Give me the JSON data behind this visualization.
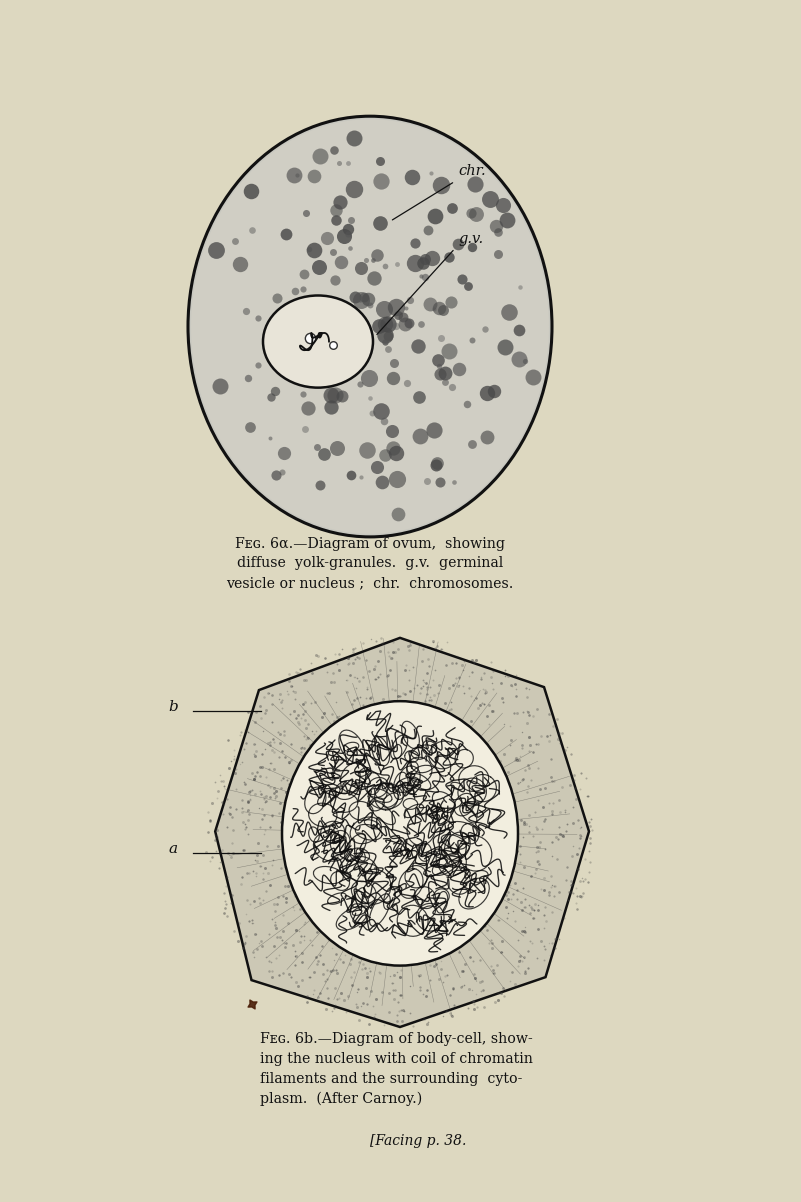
{
  "bg_color": "#ddd8c0",
  "fig_width": 8.01,
  "fig_height": 12.02,
  "label_chr": "chr.",
  "label_gv": "g.v.",
  "label_a": "a",
  "label_b": "b",
  "ovum_fill": "#c8c8c0",
  "ovum_edge": "#111111",
  "nucleus_fill": "#e8e4d8",
  "body_cell_fill": "#cccab8",
  "nucleus2_fill": "#f2eedf",
  "caption_a_line1": "Fig. 6a.—Diagram of ovum,  showing",
  "caption_a_line2": "diffuse  yolk-granules.  g.v.  germinal",
  "caption_a_line3": "vesicle or nucleus ;  chr.  chromosomes.",
  "caption_b_line1": "Fig. 6b.—Diagram of body-cell, show-",
  "caption_b_line2": "ing the nucleus with coil of chromatin",
  "caption_b_line3": "filaments and the surrounding  cyto-",
  "caption_b_line4": "plasm.  (After Carnoy.)",
  "caption_b_line5": "[Facing p. 38."
}
